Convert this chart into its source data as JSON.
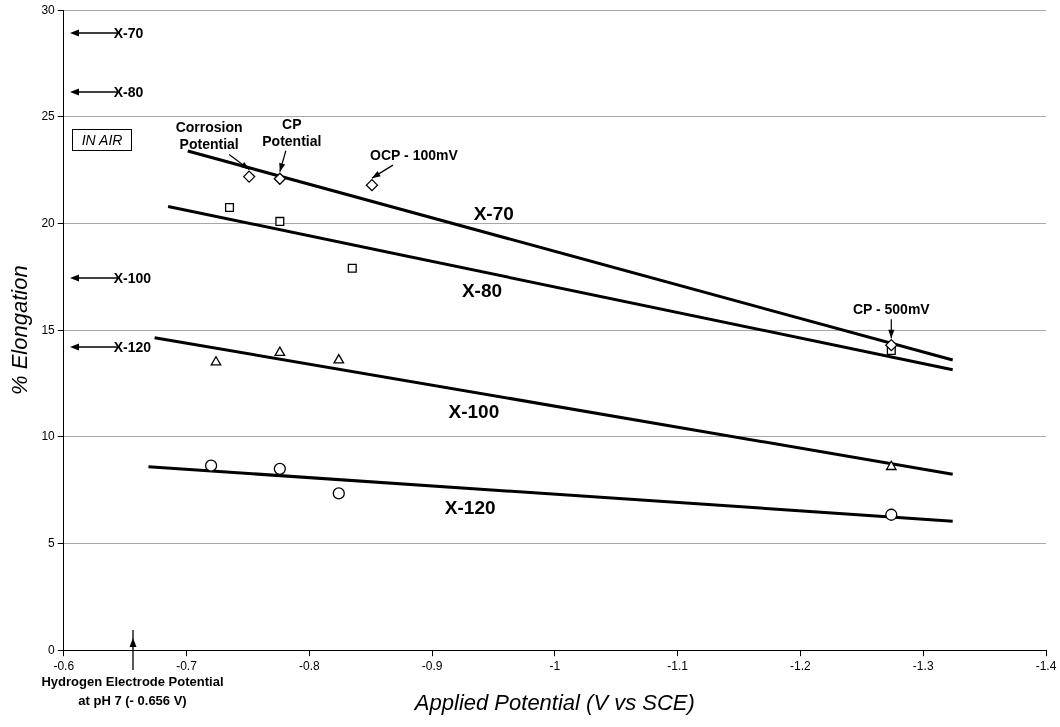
{
  "chart_data": {
    "type": "scatter",
    "xlabel": "Applied Potential (V vs SCE)",
    "ylabel": "% Elongation",
    "xlim": [
      -0.6,
      -1.4
    ],
    "xticks": [
      -0.6,
      -0.7,
      -0.8,
      -0.9,
      -1,
      -1.1,
      -1.2,
      -1.3,
      -1.4
    ],
    "ylim": [
      0,
      30
    ],
    "yticks": [
      0,
      5,
      10,
      15,
      20,
      25,
      30
    ],
    "grid": "y",
    "legend": false,
    "series": [
      {
        "marker": "diamond",
        "color": "#000000",
        "x": [
          -0.751,
          -0.776,
          -0.851,
          -1.274
        ],
        "values": [
          22.2,
          22.1,
          21.8,
          14.3
        ]
      },
      {
        "name": "X-70",
        "type": "line",
        "color": "#000000",
        "x": [
          -0.701,
          -1.324
        ],
        "values": [
          23.4,
          13.6
        ]
      },
      {
        "marker": "square",
        "color": "#000000",
        "x": [
          -0.735,
          -0.776,
          -0.835,
          -1.274
        ],
        "values": [
          20.75,
          20.1,
          17.9,
          14.05
        ]
      },
      {
        "name": "X-80",
        "type": "line",
        "color": "#000000",
        "x": [
          -0.685,
          -1.324
        ],
        "values": [
          20.8,
          13.15
        ]
      },
      {
        "marker": "triangle",
        "color": "#000000",
        "x": [
          -0.724,
          -0.776,
          -0.824,
          -1.274
        ],
        "values": [
          13.5,
          13.95,
          13.6,
          8.6
        ]
      },
      {
        "name": "X-100",
        "type": "line",
        "color": "#000000",
        "x": [
          -0.674,
          -1.324
        ],
        "values": [
          14.65,
          8.25
        ]
      },
      {
        "marker": "circle",
        "color": "#000000",
        "x": [
          -0.72,
          -0.776,
          -0.824,
          -1.274
        ],
        "values": [
          8.65,
          8.5,
          7.35,
          6.35
        ]
      },
      {
        "name": "X-120",
        "type": "line",
        "color": "#000000",
        "x": [
          -0.669,
          -1.324
        ],
        "values": [
          8.6,
          6.05
        ]
      }
    ],
    "annotations": [
      "X-70",
      "X-80",
      "IN AIR",
      "X-100",
      "X-120",
      {
        "text": "Corrosion Potential",
        "x": -0.751,
        "y": 22.2
      },
      {
        "text": "CP Potential",
        "x": -0.776,
        "y": 22.1
      },
      {
        "text": "OCP - 100mV",
        "x": -0.851,
        "y": 21.8
      },
      {
        "text": "CP - 500mV",
        "x": -1.274,
        "y": 14.3
      },
      "Hydrogen Electrode Potential at pH 7 (- 0.656 V)"
    ]
  }
}
